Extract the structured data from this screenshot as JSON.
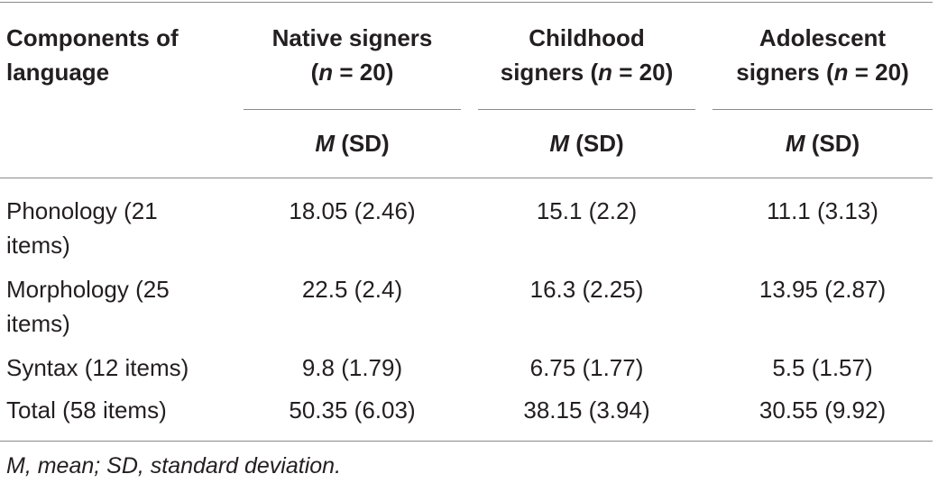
{
  "table": {
    "header": {
      "components": "Components of language",
      "columns": [
        {
          "line1": "Native signers",
          "n_prefix": "(",
          "n_var": "n",
          "n_suffix": " = 20)",
          "stat_var": "M",
          "stat_rest": " (SD)"
        },
        {
          "line1": "Childhood",
          "line2_prefix": "signers (",
          "n_var": "n",
          "n_suffix": " = 20)",
          "stat_var": "M",
          "stat_rest": " (SD)"
        },
        {
          "line1": "Adolescent",
          "line2_prefix": "signers (",
          "n_var": "n",
          "n_suffix": " = 20)",
          "stat_var": "M",
          "stat_rest": " (SD)"
        }
      ]
    },
    "rows": [
      {
        "label": "Phonology (21 items)",
        "native": "18.05 (2.46)",
        "childhood": "15.1 (2.2)",
        "adolescent": "11.1 (3.13)"
      },
      {
        "label": "Morphology (25 items)",
        "native": "22.5 (2.4)",
        "childhood": "16.3 (2.25)",
        "adolescent": "13.95 (2.87)"
      },
      {
        "label": "Syntax (12 items)",
        "native": "9.8 (1.79)",
        "childhood": "6.75 (1.77)",
        "adolescent": "5.5 (1.57)"
      },
      {
        "label": "Total (58 items)",
        "native": "50.35 (6.03)",
        "childhood": "38.15 (3.94)",
        "adolescent": "30.55 (9.92)"
      }
    ],
    "footnote": "M, mean; SD, standard deviation."
  }
}
